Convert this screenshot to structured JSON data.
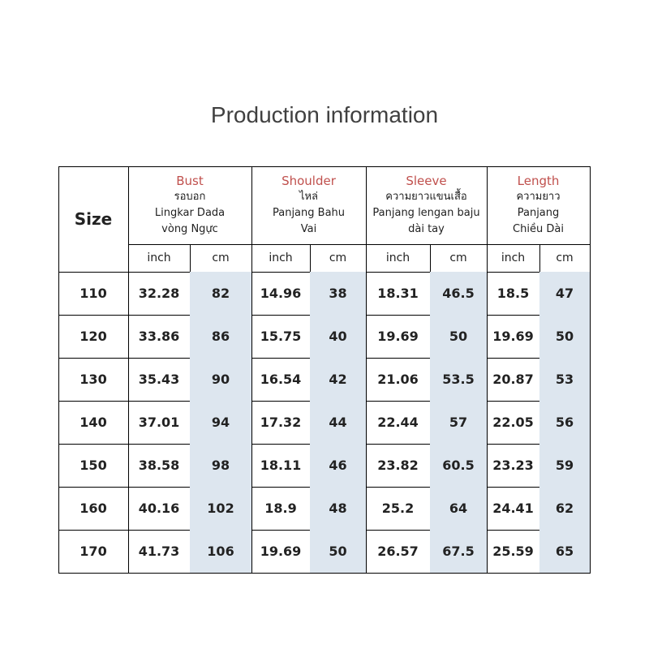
{
  "title": "Production information",
  "table": {
    "size_header": "Size",
    "groups": [
      {
        "name": "Bust",
        "lines": [
          "รอบอก",
          "Lingkar Dada",
          "vòng Ngực"
        ]
      },
      {
        "name": "Shoulder",
        "lines": [
          "ไหล่",
          "Panjang Bahu",
          "Vai"
        ]
      },
      {
        "name": "Sleeve",
        "lines": [
          "ความยาวแขนเสื้อ",
          "Panjang lengan baju",
          "dài tay"
        ]
      },
      {
        "name": "Length",
        "lines": [
          "ความยาว",
          "Panjang",
          "Chiều Dài"
        ]
      }
    ],
    "units": [
      "inch",
      "cm",
      "inch",
      "cm",
      "inch",
      "cm",
      "inch",
      "cm"
    ],
    "rows": [
      [
        "110",
        "32.28",
        "82",
        "14.96",
        "38",
        "18.31",
        "46.5",
        "18.5",
        "47"
      ],
      [
        "120",
        "33.86",
        "86",
        "15.75",
        "40",
        "19.69",
        "50",
        "19.69",
        "50"
      ],
      [
        "130",
        "35.43",
        "90",
        "16.54",
        "42",
        "21.06",
        "53.5",
        "20.87",
        "53"
      ],
      [
        "140",
        "37.01",
        "94",
        "17.32",
        "44",
        "22.44",
        "57",
        "22.05",
        "56"
      ],
      [
        "150",
        "38.58",
        "98",
        "18.11",
        "46",
        "23.82",
        "60.5",
        "23.23",
        "59"
      ],
      [
        "160",
        "40.16",
        "102",
        "18.9",
        "48",
        "25.2",
        "64",
        "24.41",
        "62"
      ],
      [
        "170",
        "41.73",
        "106",
        "19.69",
        "50",
        "26.57",
        "67.5",
        "25.59",
        "65"
      ]
    ]
  }
}
